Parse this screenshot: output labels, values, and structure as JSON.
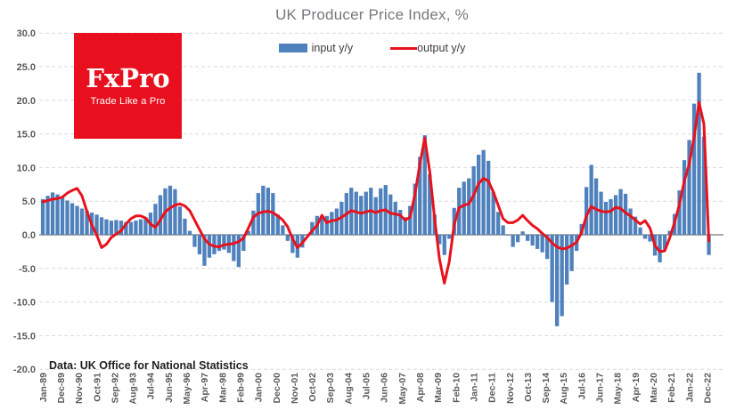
{
  "page": {
    "title": "UK Producer Price Index, %"
  },
  "logo": {
    "brand": "FxPro",
    "tagline": "Trade Like a Pro",
    "bg_color": "#e8101e",
    "text_color": "#ffffff"
  },
  "footer": {
    "source_note": "Data: UK Office for National Statistics"
  },
  "colors": {
    "input_bar": "#4f81bd",
    "output_line": "#e8121d",
    "grid": "#d9d9d9",
    "zero_line": "#9e9e9e",
    "tick_label": "#595959",
    "title": "#77787b"
  },
  "chart_data": {
    "type": "bar",
    "subtype": "bar+line combo, monthly time series (values sampled quarterly)",
    "title": "UK Producer Price Index, %",
    "footnote": "Data: UK Office for National Statistics",
    "legend_position": "top-center",
    "grid": "horizontal dashed",
    "ylim": [
      -20,
      30
    ],
    "ytick_step": 5,
    "y_tick_labels": [
      "30.0",
      "25.0",
      "20.0",
      "15.0",
      "10.0",
      "5.0",
      "0.0",
      "-5.0",
      "-10.0",
      "-15.0",
      "-20.0"
    ],
    "x_start": "Jan-1989",
    "x_end": "Jan-2023",
    "x_interval_months": 3,
    "x_tick_labels": [
      "Jan-89",
      "Dec-89",
      "Nov-90",
      "Oct-91",
      "Sep-92",
      "Aug-93",
      "Jul-94",
      "Jun-95",
      "May-96",
      "Apr-97",
      "Mar-98",
      "Feb-99",
      "Jan-00",
      "Dec-00",
      "Nov-01",
      "Oct-02",
      "Sep-03",
      "Aug-04",
      "Jul-05",
      "Jun-06",
      "May-07",
      "Apr-08",
      "Mar-09",
      "Feb-10",
      "Jan-11",
      "Dec-11",
      "Nov-12",
      "Oct-13",
      "Sep-14",
      "Aug-15",
      "Jul-16",
      "Jun-17",
      "May-18",
      "Apr-19",
      "Mar-20",
      "Feb-21",
      "Jan-22",
      "Dec-22"
    ],
    "x_tick_interval_months": 11,
    "series": [
      {
        "name": "input y/y",
        "type": "bar",
        "color": "#4f81bd",
        "values": [
          5.3,
          5.8,
          6.3,
          6.0,
          5.5,
          5.1,
          4.7,
          4.3,
          3.9,
          3.6,
          3.3,
          3.0,
          2.6,
          2.3,
          2.1,
          2.2,
          2.1,
          1.9,
          1.9,
          2.1,
          2.3,
          2.6,
          3.3,
          4.6,
          5.9,
          6.9,
          7.3,
          6.8,
          4.2,
          2.4,
          0.6,
          -1.8,
          -2.9,
          -4.6,
          -3.4,
          -2.9,
          -2.4,
          -2.2,
          -2.7,
          -3.9,
          -4.8,
          -2.4,
          0.6,
          3.6,
          6.2,
          7.3,
          7.0,
          6.2,
          3.0,
          1.4,
          -0.9,
          -2.7,
          -3.4,
          -1.9,
          0.1,
          1.9,
          2.8,
          2.5,
          2.8,
          3.4,
          3.9,
          4.9,
          6.2,
          7.0,
          6.4,
          5.8,
          6.4,
          7.0,
          5.6,
          6.9,
          7.4,
          6.0,
          4.9,
          3.7,
          2.6,
          4.3,
          7.6,
          11.6,
          14.8,
          9.0,
          3.0,
          -1.4,
          -3.0,
          -0.6,
          4.0,
          7.0,
          7.9,
          8.4,
          10.2,
          11.9,
          12.6,
          11.0,
          6.4,
          3.4,
          1.4,
          0.0,
          -1.8,
          -1.1,
          0.5,
          -0.9,
          -1.6,
          -2.1,
          -2.6,
          -3.6,
          -10.0,
          -13.6,
          -12.1,
          -7.4,
          -5.4,
          -2.4,
          1.6,
          7.1,
          10.4,
          8.4,
          6.4,
          4.9,
          5.3,
          5.9,
          6.8,
          6.1,
          3.9,
          2.7,
          1.1,
          -0.6,
          -1.0,
          -3.1,
          -4.1,
          -2.2,
          0.6,
          3.1,
          6.6,
          11.1,
          14.1,
          19.5,
          24.1,
          14.6,
          -3.0
        ]
      },
      {
        "name": "output y/y",
        "type": "line",
        "color": "#e8121d",
        "values": [
          4.9,
          5.1,
          5.3,
          5.4,
          5.6,
          6.2,
          6.6,
          6.9,
          5.8,
          3.5,
          1.5,
          0.0,
          -1.9,
          -1.4,
          -0.4,
          0.1,
          0.6,
          1.6,
          2.4,
          2.8,
          2.8,
          2.5,
          1.6,
          1.1,
          2.2,
          3.4,
          4.0,
          4.4,
          4.6,
          4.3,
          3.6,
          2.2,
          0.8,
          -0.6,
          -1.4,
          -1.7,
          -1.8,
          -1.5,
          -1.4,
          -1.3,
          -1.0,
          -0.5,
          1.0,
          2.6,
          3.2,
          3.4,
          3.5,
          3.3,
          2.8,
          2.2,
          1.2,
          -0.6,
          -1.9,
          -1.2,
          -0.3,
          0.6,
          1.4,
          2.9,
          1.8,
          2.1,
          2.2,
          2.6,
          3.1,
          3.6,
          3.4,
          3.2,
          3.4,
          3.6,
          3.3,
          3.6,
          3.7,
          3.2,
          3.1,
          2.9,
          2.2,
          2.6,
          6.0,
          10.5,
          14.4,
          9.5,
          2.5,
          -3.6,
          -7.2,
          -4.0,
          1.5,
          4.0,
          4.4,
          4.6,
          5.9,
          7.6,
          8.4,
          8.0,
          6.4,
          4.4,
          2.4,
          1.8,
          1.8,
          2.2,
          2.9,
          2.1,
          1.4,
          0.9,
          0.2,
          -0.4,
          -1.2,
          -1.8,
          -2.1,
          -2.0,
          -1.6,
          -1.1,
          0.3,
          2.8,
          4.2,
          3.8,
          3.5,
          3.4,
          3.5,
          4.1,
          3.9,
          3.3,
          2.8,
          2.2,
          1.6,
          2.1,
          1.0,
          -1.6,
          -2.5,
          -2.4,
          -0.5,
          1.8,
          4.5,
          8.0,
          10.5,
          14.5,
          19.7,
          16.5,
          -0.9
        ]
      }
    ]
  }
}
